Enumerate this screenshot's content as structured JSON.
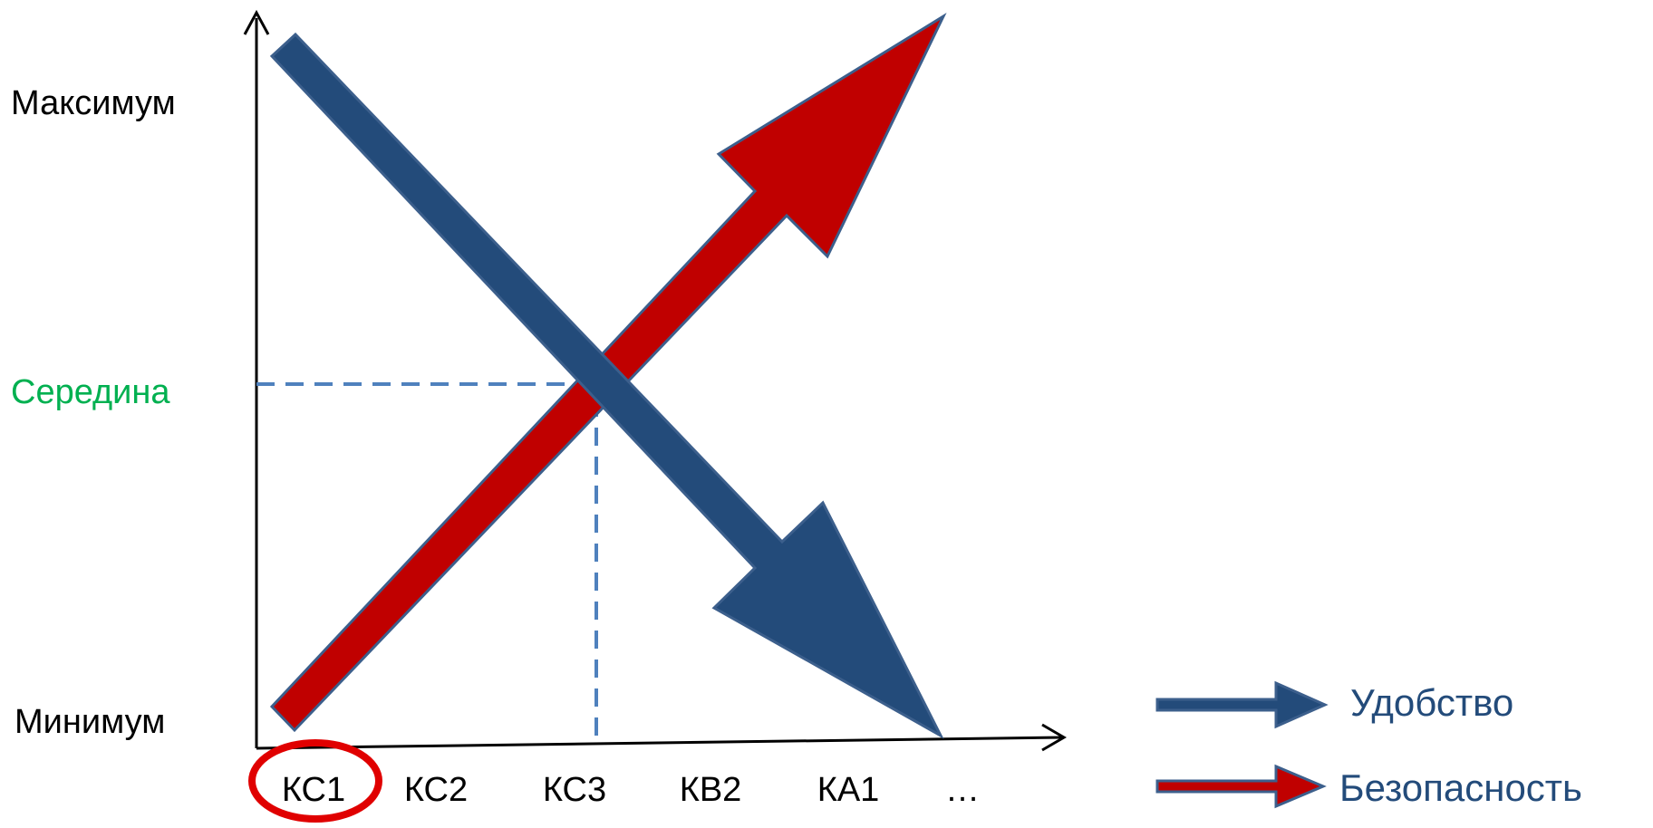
{
  "diagram": {
    "y_axis_labels": {
      "max": "Максимум",
      "mid": "Середина",
      "min": "Минимум"
    },
    "x_axis_labels": [
      "КС1",
      "КС2",
      "КС3",
      "КВ2",
      "КА1",
      "…"
    ],
    "highlighted_category": "КС1",
    "legend": {
      "convenience": "Удобство",
      "security": "Безопасность"
    },
    "colors": {
      "convenience": "#234b7a",
      "security": "#c00000",
      "outline": "#3c5f8c",
      "guide": "#4f81bd",
      "mid_label": "#00b050",
      "highlight": "#e00000",
      "axis": "#000000",
      "text": "#000000",
      "legend_text": "#234b7a"
    },
    "icons": {
      "convenience_arrow": "arrow-down-right-icon",
      "security_arrow": "arrow-up-right-icon"
    }
  }
}
